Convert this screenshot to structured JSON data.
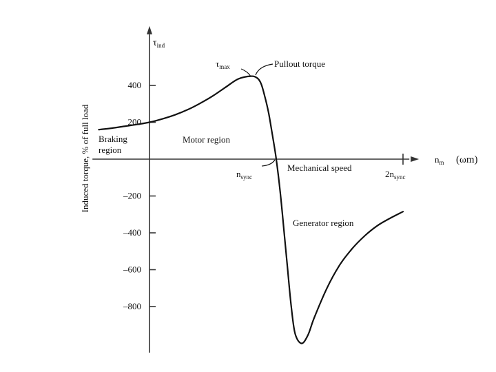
{
  "chart_data": {
    "type": "line",
    "ylabel": "Induced torque, % of full load",
    "y_axis_name_main": "τ",
    "y_axis_name_sub": "ind",
    "x_axis_name_main": "n",
    "x_axis_name_sub": "m",
    "x_axis_extra": "(ωm)",
    "y_ticks": [
      400,
      200,
      0,
      -200,
      -400,
      -600,
      -800
    ],
    "y_tick_labels": [
      "400",
      "200",
      "",
      "–200",
      "–400",
      "–600",
      "–800"
    ],
    "x_ticks": [
      {
        "x": 1,
        "main": "n",
        "sub": "sync"
      },
      {
        "x": 2,
        "main": "2n",
        "sub": "sync"
      }
    ],
    "xlim": [
      -0.45,
      2.05
    ],
    "ylim": [
      -1050,
      640
    ],
    "series": [
      {
        "x": [
          -0.4,
          -0.3,
          -0.2,
          -0.1,
          0.0,
          0.1,
          0.2,
          0.3,
          0.4,
          0.5,
          0.6,
          0.7,
          0.8,
          0.85,
          0.88,
          0.91,
          0.94,
          0.97,
          1.0,
          1.03,
          1.06,
          1.09,
          1.12,
          1.15,
          1.2,
          1.25,
          1.3,
          1.4,
          1.5,
          1.6,
          1.7,
          1.8,
          1.9,
          2.0
        ],
        "y": [
          160,
          168,
          178,
          188,
          200,
          218,
          240,
          268,
          303,
          343,
          390,
          435,
          450,
          440,
          410,
          340,
          250,
          130,
          0,
          -170,
          -380,
          -600,
          -810,
          -950,
          -1000,
          -955,
          -860,
          -700,
          -575,
          -485,
          -415,
          -360,
          -320,
          -285
        ]
      }
    ],
    "annotations": {
      "tau_max_main": "τ",
      "tau_max_sub": "max",
      "pullout": "Pullout torque",
      "braking_line1": "Braking",
      "braking_line2": "region",
      "motor": "Motor region",
      "generator": "Generator region",
      "mech_speed": "Mechanical speed"
    }
  }
}
